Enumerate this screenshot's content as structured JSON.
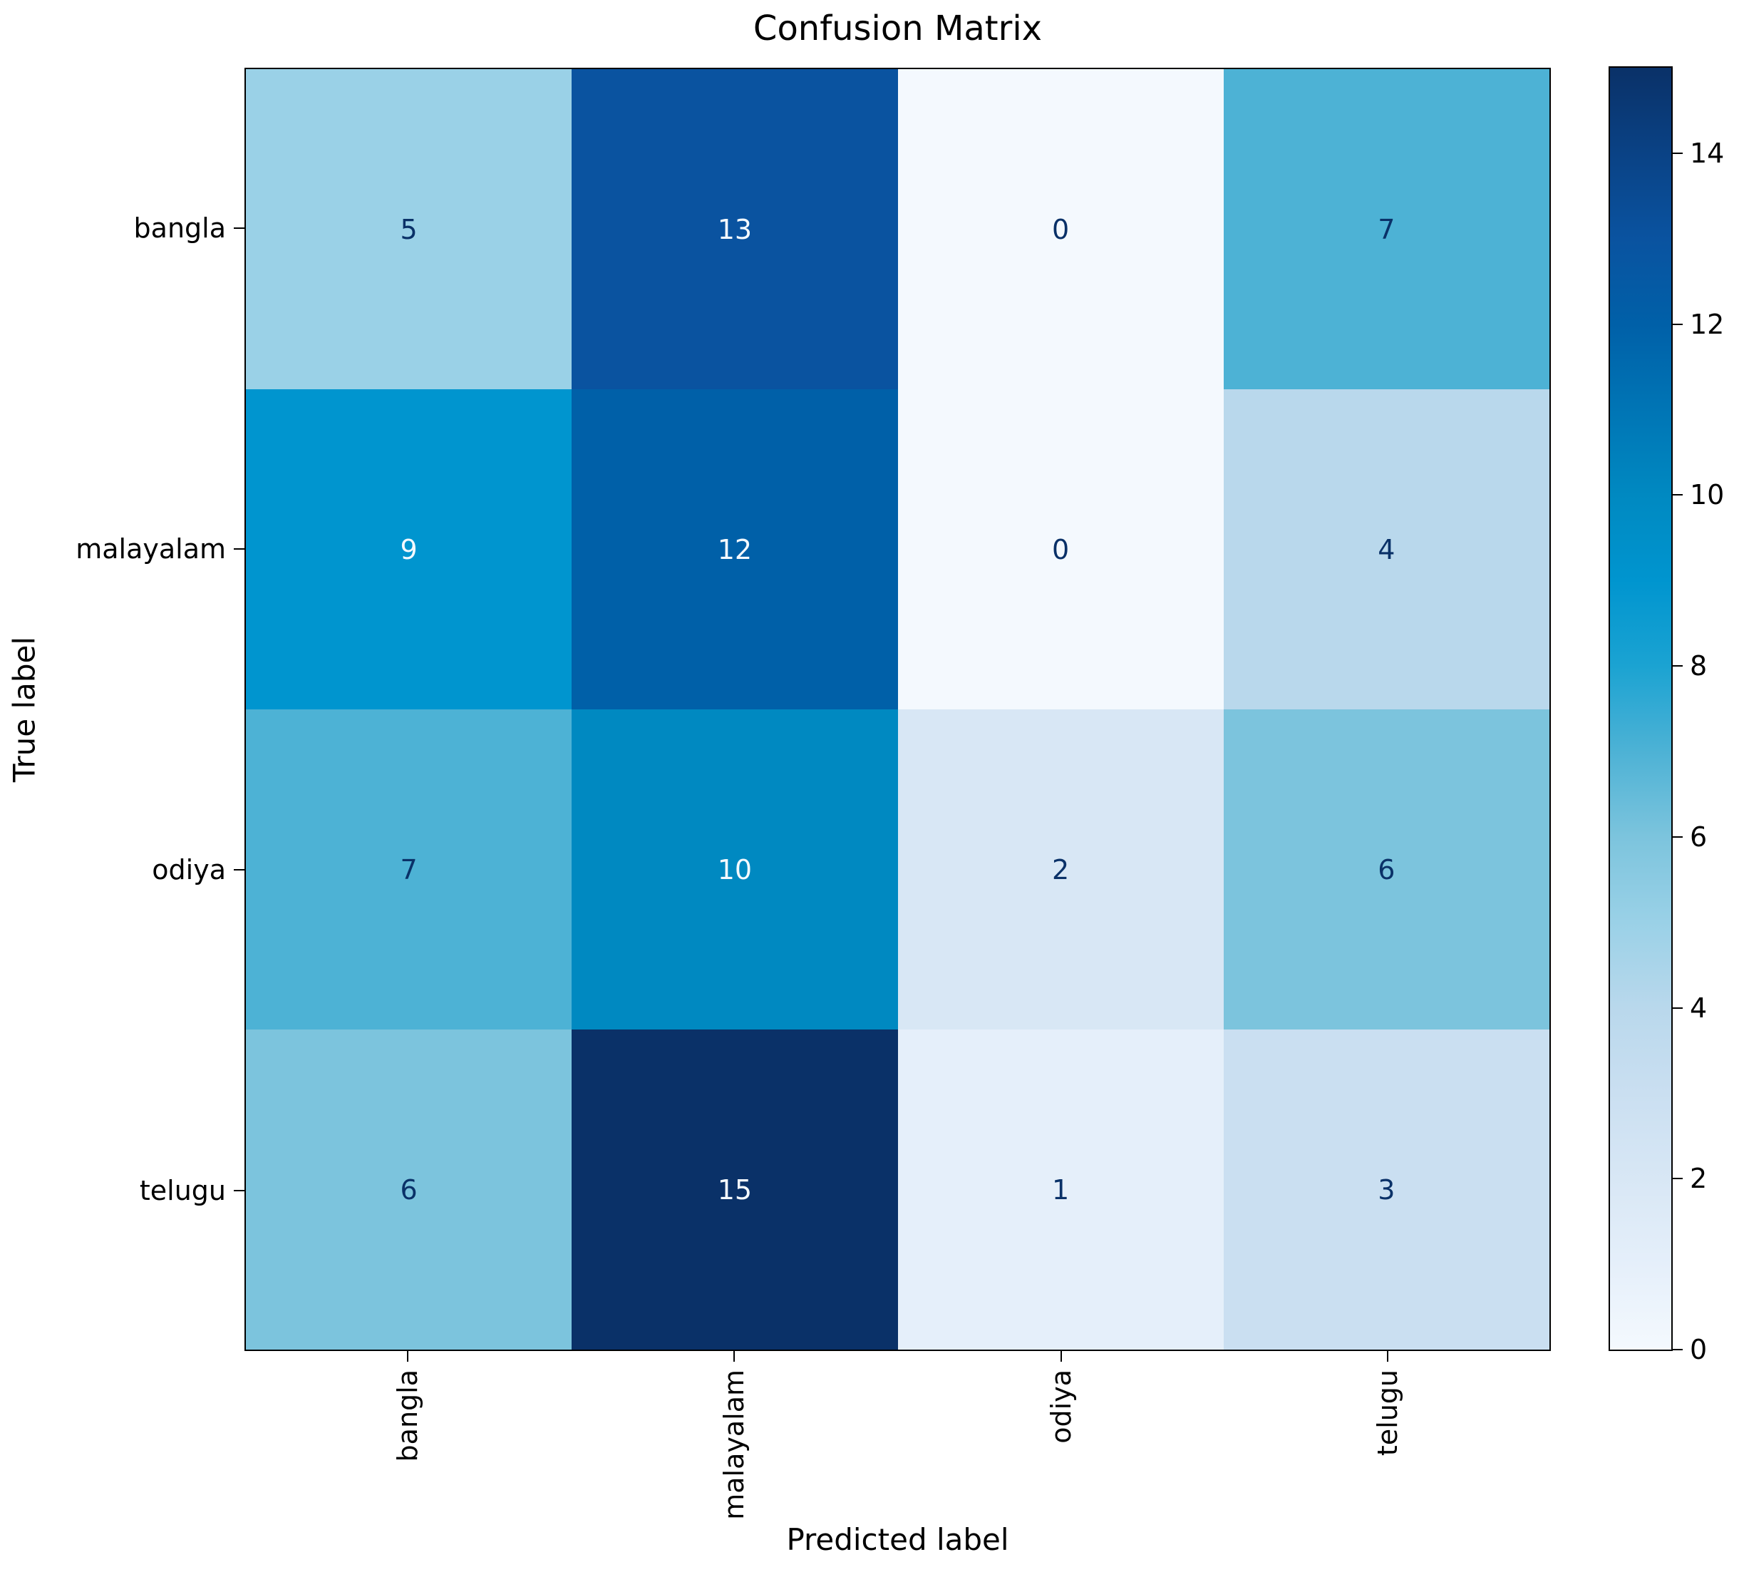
{
  "chart_data": {
    "type": "heatmap",
    "title": "Confusion Matrix",
    "xlabel": "Predicted label",
    "ylabel": "True label",
    "x_categories": [
      "bangla",
      "malayalam",
      "odiya",
      "telugu"
    ],
    "y_categories": [
      "bangla",
      "malayalam",
      "odiya",
      "telugu"
    ],
    "matrix": [
      [
        5,
        13,
        0,
        7
      ],
      [
        9,
        12,
        0,
        4
      ],
      [
        7,
        10,
        2,
        6
      ],
      [
        6,
        15,
        1,
        3
      ]
    ],
    "vmin": 0,
    "vmax": 15,
    "grid": false,
    "legend_position": "right-colorbar",
    "colorbar": {
      "ticks": [
        0,
        2,
        4,
        6,
        8,
        10,
        12,
        14
      ]
    },
    "colorscale": [
      "#f4f9fe",
      "#e5effa",
      "#d8e7f5",
      "#cadff1",
      "#b9d8ec",
      "#9ad1e7",
      "#7cc4dd",
      "#4db2d5",
      "#1ba3d2",
      "#0095cf",
      "#0089c1",
      "#0075b5",
      "#0060a8",
      "#0a53a0",
      "#0a4285",
      "#0a3168"
    ],
    "text_color_threshold": 7.5,
    "dark_text_color": "#0a3168",
    "light_text_color": "#f4f9fe",
    "axis_color": "#000000",
    "background_color": "#ffffff"
  }
}
